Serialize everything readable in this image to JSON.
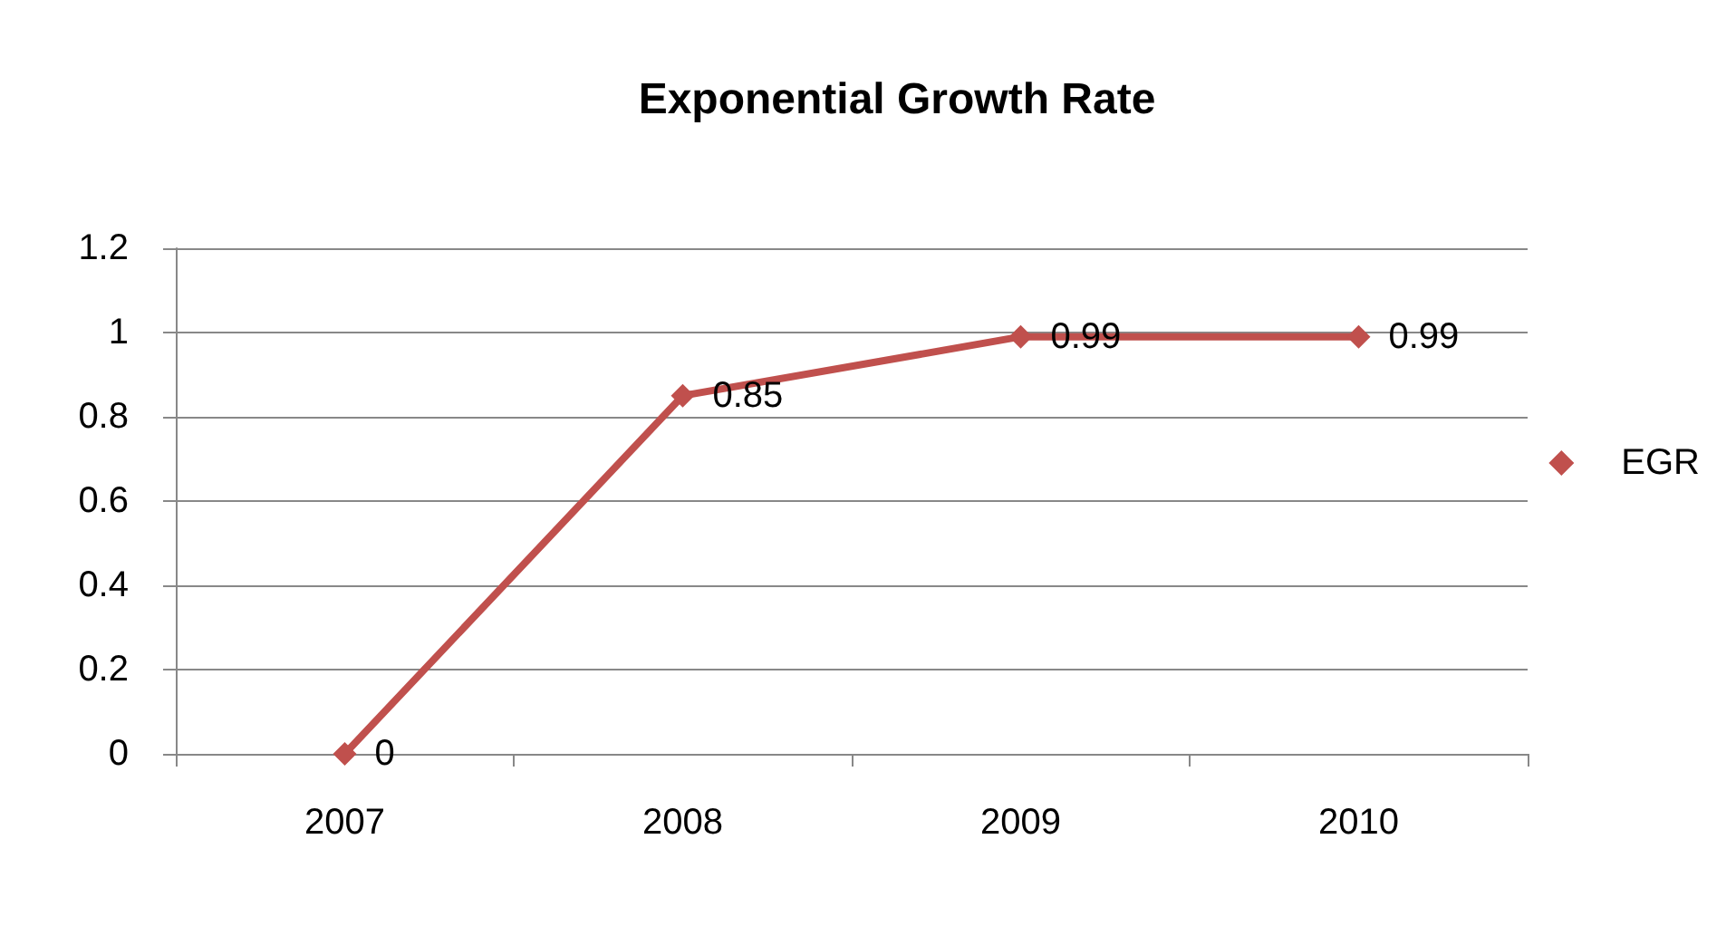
{
  "chart_data": {
    "type": "line",
    "title": "Exponential Growth Rate",
    "categories": [
      "2007",
      "2008",
      "2009",
      "2010"
    ],
    "series": [
      {
        "name": "EGR",
        "color": "#c0504d",
        "values": [
          0,
          0.85,
          0.99,
          0.99
        ]
      }
    ],
    "ylim": [
      0,
      1.2
    ],
    "yticks": [
      0,
      0.2,
      0.4,
      0.6,
      0.8,
      1,
      1.2
    ],
    "grid": "y",
    "legend": "right",
    "marker": "diamond",
    "data_labels": true
  }
}
